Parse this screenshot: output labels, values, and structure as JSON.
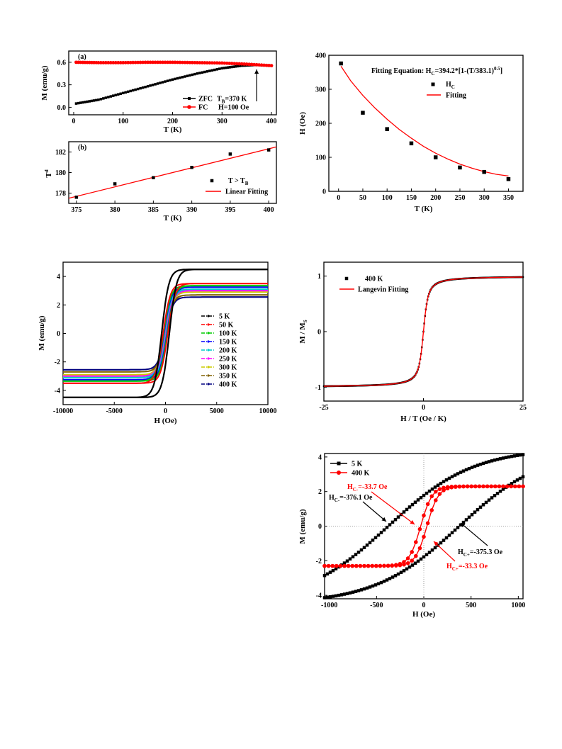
{
  "chart_data": [
    {
      "id": "zfc_fc",
      "type": "line",
      "panel_label": "(a)",
      "xlabel": "T (K)",
      "ylabel": "M (emu/g)",
      "xlim": [
        -10,
        410
      ],
      "ylim": [
        -0.1,
        0.75
      ],
      "xticks": [
        0,
        100,
        200,
        300,
        400
      ],
      "yticks": [
        0.0,
        0.3,
        0.6
      ],
      "series": [
        {
          "name": "ZFC",
          "marker": "square",
          "color": "#000000",
          "x": [
            5,
            50,
            100,
            150,
            200,
            250,
            300,
            340,
            370,
            400
          ],
          "y": [
            0.05,
            0.1,
            0.19,
            0.28,
            0.37,
            0.45,
            0.52,
            0.555,
            0.565,
            0.555
          ]
        },
        {
          "name": "FC",
          "marker": "circle",
          "color": "#ff0000",
          "x": [
            5,
            50,
            100,
            150,
            200,
            250,
            300,
            350,
            400
          ],
          "y": [
            0.6,
            0.595,
            0.595,
            0.6,
            0.6,
            0.595,
            0.59,
            0.575,
            0.555
          ]
        }
      ],
      "annotations": [
        {
          "text": "T",
          "sub": "B",
          "after": "=370 K"
        },
        {
          "text": "H=100 Oe"
        }
      ]
    },
    {
      "id": "tb_fit",
      "type": "scatter",
      "panel_label": "(b)",
      "xlabel": "T (K)",
      "ylabel": "",
      "ylabel_main": "T",
      "ylabel_sup": "d",
      "xlim": [
        374,
        401
      ],
      "ylim": [
        177,
        183
      ],
      "xticks": [
        375,
        380,
        385,
        390,
        395,
        400
      ],
      "yticks": [
        178,
        180,
        182
      ],
      "series": [
        {
          "name_main": "T > T",
          "name_sub": "B",
          "marker": "square",
          "color": "#000000",
          "x": [
            375,
            380,
            385,
            390,
            395,
            400
          ],
          "y": [
            177.6,
            178.9,
            179.5,
            180.5,
            181.8,
            182.2
          ]
        },
        {
          "name": "Linear Fitting",
          "type": "line",
          "color": "#ff0000",
          "x": [
            374,
            401
          ],
          "y": [
            177.5,
            182.5
          ]
        }
      ]
    },
    {
      "id": "hc_vs_t",
      "type": "scatter",
      "xlabel": "T (K)",
      "ylabel": "H (Oe)",
      "xlim": [
        -20,
        380
      ],
      "ylim": [
        0,
        400
      ],
      "xticks": [
        0,
        50,
        100,
        150,
        200,
        250,
        300,
        350
      ],
      "yticks": [
        0,
        100,
        200,
        300,
        400
      ],
      "equation": {
        "p1": "Fitting Equation: H",
        "sub": "C",
        "p2": "=394.2*[1-(T/383.1)",
        "sup": "0.5",
        "p3": "]"
      },
      "series": [
        {
          "name_main": "H",
          "name_sub": "C",
          "marker": "square",
          "color": "#000000",
          "x": [
            5,
            50,
            100,
            150,
            200,
            250,
            300,
            350
          ],
          "y": [
            376,
            231,
            183,
            141,
            100,
            70,
            57,
            36
          ]
        },
        {
          "name": "Fitting",
          "type": "line",
          "color": "#ff0000",
          "x": [
            5,
            25,
            50,
            75,
            100,
            125,
            150,
            175,
            200,
            225,
            250,
            275,
            300,
            325,
            350
          ],
          "y": [
            368,
            325,
            282,
            245,
            212,
            182,
            156,
            132,
            112,
            95,
            80,
            68,
            58,
            50,
            45
          ]
        }
      ]
    },
    {
      "id": "mh_loops",
      "type": "line",
      "xlabel": "H (Oe)",
      "ylabel": "M (emu/g)",
      "xlim": [
        -10000,
        10000
      ],
      "ylim": [
        -5,
        5
      ],
      "xticks": [
        -10000,
        -5000,
        0,
        5000,
        10000
      ],
      "yticks": [
        -4,
        -2,
        0,
        2,
        4
      ],
      "series": [
        {
          "name": "5 K",
          "color": "#000000",
          "Ms": 4.5,
          "Hc": 376
        },
        {
          "name": "50 K",
          "color": "#ff0000",
          "Ms": 3.5,
          "Hc": 231
        },
        {
          "name": "100 K",
          "color": "#00cc00",
          "Ms": 3.35,
          "Hc": 183
        },
        {
          "name": "150 K",
          "color": "#0000ff",
          "Ms": 3.25,
          "Hc": 141
        },
        {
          "name": "200 K",
          "color": "#00cccc",
          "Ms": 3.1,
          "Hc": 100
        },
        {
          "name": "250 K",
          "color": "#ff00ff",
          "Ms": 3.0,
          "Hc": 70
        },
        {
          "name": "300 K",
          "color": "#cccc00",
          "Ms": 2.9,
          "Hc": 57
        },
        {
          "name": "350 K",
          "color": "#806000",
          "Ms": 2.7,
          "Hc": 36
        },
        {
          "name": "400 K",
          "color": "#000080",
          "Ms": 2.55,
          "Hc": 33
        }
      ]
    },
    {
      "id": "langevin",
      "type": "scatter",
      "xlabel": "H / T (Oe / K)",
      "ylabel_main": "M / M",
      "ylabel_sub": "S",
      "xlim": [
        -25,
        25
      ],
      "ylim": [
        -1.25,
        1.25
      ],
      "xticks": [
        -25,
        0,
        25
      ],
      "yticks": [
        -1,
        0,
        1
      ],
      "series": [
        {
          "name": "400 K",
          "marker": "square",
          "color": "#000000"
        },
        {
          "name": "Langevin Fitting",
          "type": "line",
          "color": "#ff0000"
        }
      ]
    },
    {
      "id": "low_field",
      "type": "line",
      "xlabel": "H (Oe)",
      "ylabel": "M (emu/g)",
      "xlim": [
        -1050,
        1050
      ],
      "ylim": [
        -4.2,
        4.2
      ],
      "xticks": [
        -1000,
        -500,
        0,
        500,
        1000
      ],
      "yticks": [
        -4,
        -2,
        0,
        2,
        4
      ],
      "series": [
        {
          "name": "5 K",
          "marker": "square",
          "color": "#000000",
          "Hc": 376,
          "Ms": 4.5
        },
        {
          "name": "400 K",
          "marker": "circle",
          "color": "#ff0000",
          "Hc": 33,
          "Ms": 2.3
        }
      ],
      "annotations": [
        {
          "id": "ann_400_minus",
          "main": "H",
          "sub": "C-",
          "after": "=-33.7 Oe",
          "color": "#ff0000"
        },
        {
          "id": "ann_5_minus",
          "main": "H",
          "sub": "C-",
          "after": "=-376.1 Oe",
          "color": "#000000"
        },
        {
          "id": "ann_5_plus",
          "main": "H",
          "sub": "C+",
          "after": "=-375.3 Oe",
          "color": "#000000"
        },
        {
          "id": "ann_400_plus",
          "main": "H",
          "sub": "C+",
          "after": "=-33.3 Oe",
          "color": "#ff0000"
        }
      ]
    }
  ]
}
